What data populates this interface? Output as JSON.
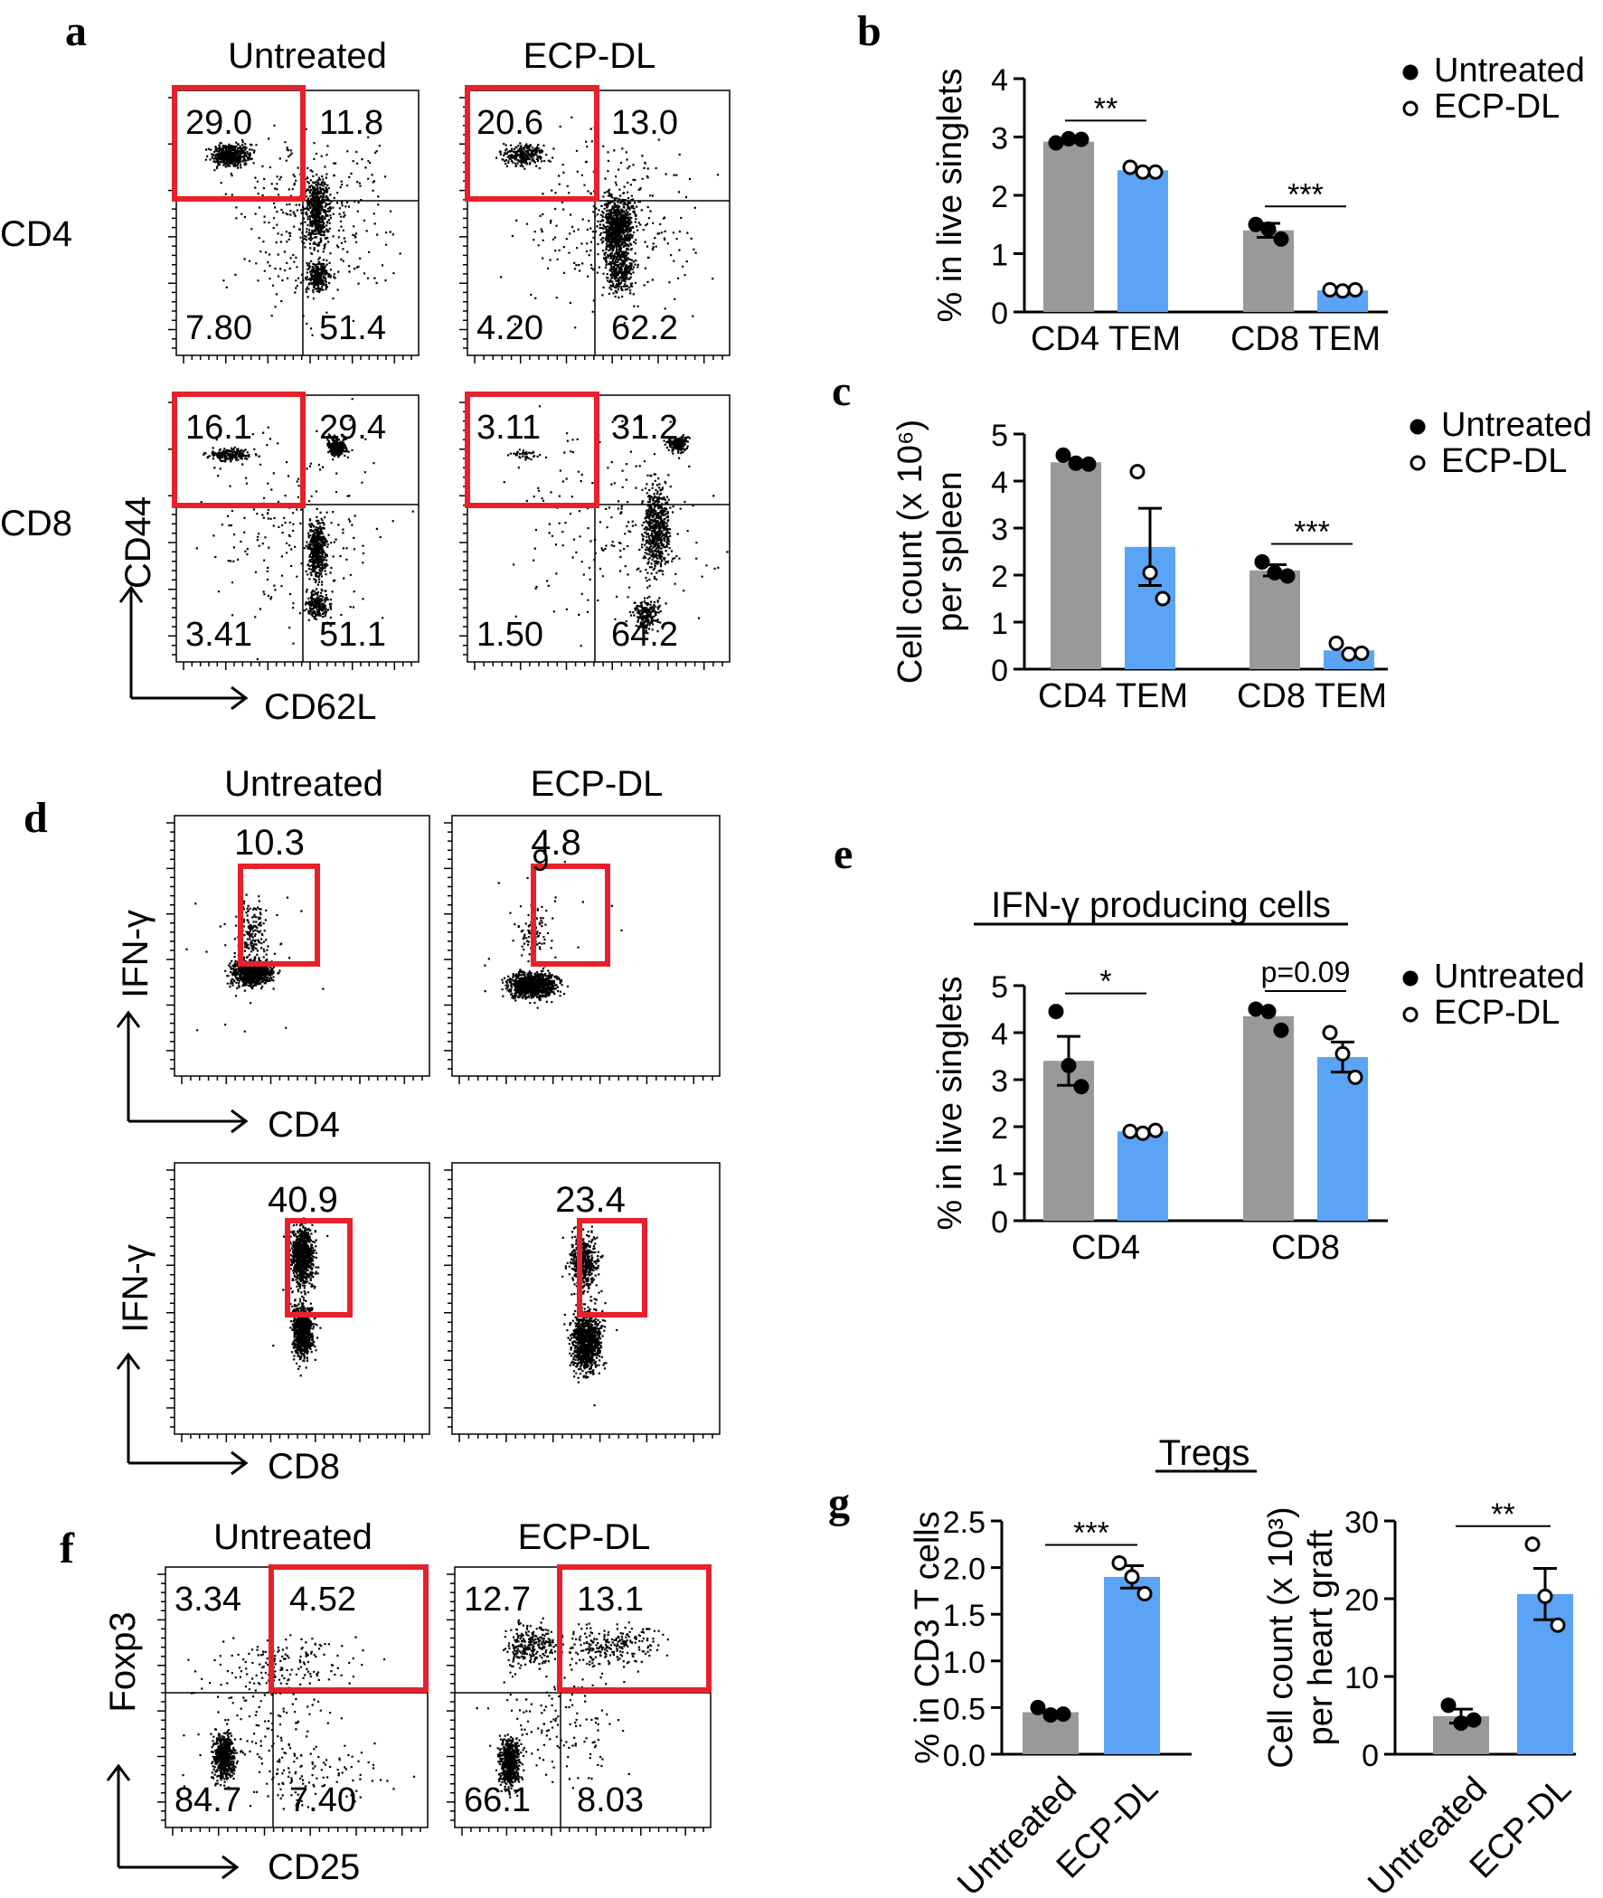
{
  "colors": {
    "untreated": "#999999",
    "ecp": "#5ba3f5",
    "gate": "#e8202a",
    "ink": "#000000"
  },
  "panels": {
    "a": {
      "label": "a",
      "col1": "Untreated",
      "col2": "ECP-DL",
      "row1": "CD4",
      "row2": "CD8",
      "xaxis": "CD62L",
      "yaxis": "CD44",
      "plots": [
        {
          "q": [
            "29.0",
            "11.8",
            "7.80",
            "51.4"
          ]
        },
        {
          "q": [
            "20.6",
            "13.0",
            "4.20",
            "62.2"
          ]
        },
        {
          "q": [
            "16.1",
            "29.4",
            "3.41",
            "51.1"
          ]
        },
        {
          "q": [
            "3.11",
            "31.2",
            "1.50",
            "64.2"
          ]
        }
      ]
    },
    "d": {
      "label": "d",
      "col1": "Untreated",
      "col2": "ECP-DL",
      "yaxis": "IFN-γ",
      "x1": "CD4",
      "x2": "CD8",
      "plots": [
        {
          "v": "10.3"
        },
        {
          "v": "4.8",
          "stray": "9"
        },
        {
          "v": "40.9"
        },
        {
          "v": "23.4"
        }
      ]
    },
    "f": {
      "label": "f",
      "col1": "Untreated",
      "col2": "ECP-DL",
      "xaxis": "CD25",
      "yaxis": "Foxp3",
      "plots": [
        {
          "q": [
            "3.34",
            "4.52",
            "84.7",
            "7.40"
          ]
        },
        {
          "q": [
            "12.7",
            "13.1",
            "66.1",
            "8.03"
          ]
        }
      ]
    }
  },
  "chart_data": [
    {
      "id": "b",
      "panel": "b",
      "type": "bar",
      "categories": [
        "CD4 TEM",
        "CD8 TEM"
      ],
      "ylabel": [
        "% in live singlets"
      ],
      "ylim": [
        0,
        4
      ],
      "ticks": [
        0,
        1,
        2,
        3,
        4
      ],
      "legend": [
        "Untreated",
        "ECP-DL"
      ],
      "series": [
        {
          "name": "Untreated",
          "values": [
            2.92,
            1.4
          ],
          "sem": [
            0.0,
            0.12
          ],
          "points": [
            [
              2.9,
              2.97,
              2.96
            ],
            [
              1.5,
              1.42,
              1.25
            ]
          ]
        },
        {
          "name": "ECP-DL",
          "values": [
            2.43,
            0.37
          ],
          "sem": [
            0.0,
            0.0
          ],
          "points": [
            [
              2.48,
              2.4,
              2.4
            ],
            [
              0.38,
              0.36,
              0.38
            ]
          ]
        }
      ],
      "significance": [
        "**",
        "***"
      ]
    },
    {
      "id": "c",
      "panel": "c",
      "type": "bar",
      "categories": [
        "CD4 TEM",
        "CD8 TEM"
      ],
      "ylabel": [
        "Cell count (x 10⁶)",
        "per spleen"
      ],
      "ylim": [
        0,
        5
      ],
      "ticks": [
        0,
        1,
        2,
        3,
        4,
        5
      ],
      "legend": [
        "Untreated",
        "ECP-DL"
      ],
      "series": [
        {
          "name": "Untreated",
          "values": [
            4.4,
            2.1
          ],
          "sem": [
            0.0,
            0.12
          ],
          "points": [
            [
              4.55,
              4.38,
              4.36
            ],
            [
              2.28,
              2.05,
              1.98
            ]
          ]
        },
        {
          "name": "ECP-DL",
          "values": [
            2.6,
            0.4
          ],
          "sem": [
            0.82,
            0.0
          ],
          "points": [
            [
              4.2,
              2.05,
              1.5
            ],
            [
              0.55,
              0.32,
              0.34
            ]
          ]
        }
      ],
      "significance": [
        "",
        "***"
      ]
    },
    {
      "id": "e",
      "panel": "e",
      "type": "bar",
      "title": "IFN-γ producing cells",
      "categories": [
        "CD4",
        "CD8"
      ],
      "ylabel": [
        "% in live singlets"
      ],
      "ylim": [
        0,
        5
      ],
      "ticks": [
        0,
        1,
        2,
        3,
        4,
        5
      ],
      "legend": [
        "Untreated",
        "ECP-DL"
      ],
      "series": [
        {
          "name": "Untreated",
          "values": [
            3.4,
            4.35
          ],
          "sem": [
            0.52,
            0.0
          ],
          "points": [
            [
              4.45,
              3.3,
              2.85
            ],
            [
              4.5,
              4.45,
              4.05
            ]
          ]
        },
        {
          "name": "ECP-DL",
          "values": [
            1.9,
            3.48
          ],
          "sem": [
            0.0,
            0.32
          ],
          "points": [
            [
              1.9,
              1.86,
              1.92
            ],
            [
              4.0,
              3.55,
              3.05
            ]
          ]
        }
      ],
      "significance": [
        "*",
        "p=0.09"
      ]
    },
    {
      "id": "g1",
      "panel": "g",
      "type": "bar",
      "title": "Tregs",
      "categories": [
        "Untreated",
        "ECP-DL"
      ],
      "ylabel": [
        "% in CD3 T cells"
      ],
      "ylim": [
        0,
        2.5
      ],
      "ticks": [
        0.0,
        0.5,
        1.0,
        1.5,
        2.0,
        2.5
      ],
      "tick_labels": [
        "0.0",
        "0.5",
        "1.0",
        "1.5",
        "2.0",
        "2.5"
      ],
      "values": [
        0.45,
        1.9
      ],
      "sem": [
        0.0,
        0.12
      ],
      "points": [
        [
          0.5,
          0.42,
          0.43
        ],
        [
          2.05,
          1.9,
          1.72
        ]
      ],
      "significance": "***"
    },
    {
      "id": "g2",
      "panel": "g",
      "type": "bar",
      "categories": [
        "Untreated",
        "ECP-DL"
      ],
      "ylabel": [
        "Cell count (x 10³)",
        "per heart graft"
      ],
      "ylim": [
        0,
        30
      ],
      "ticks": [
        0,
        10,
        20,
        30
      ],
      "tick_labels": [
        "0",
        "10",
        "20",
        "30"
      ],
      "values": [
        4.9,
        20.6
      ],
      "sem": [
        0.9,
        3.3
      ],
      "points": [
        [
          6.3,
          4.0,
          4.4
        ],
        [
          27.0,
          20.3,
          16.6
        ]
      ],
      "significance": "**"
    }
  ]
}
